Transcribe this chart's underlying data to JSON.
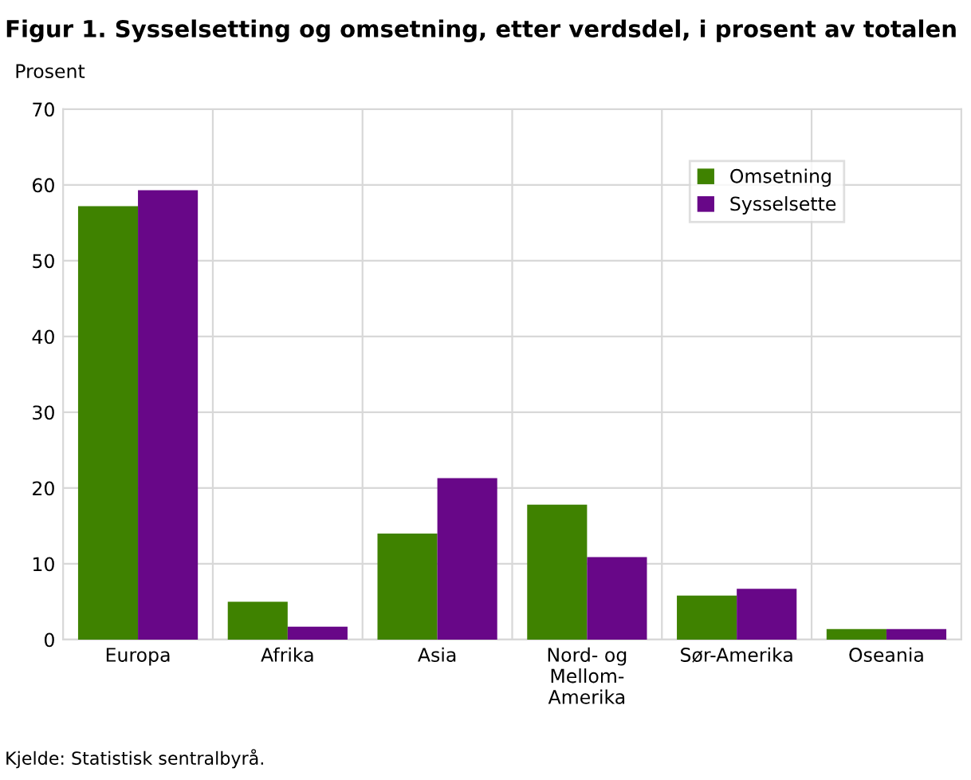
{
  "chart_data": {
    "type": "bar",
    "title": "Figur 1. Sysselsetting og omsetning, etter verdsdel, i prosent av totalen",
    "ylabel": "Prosent",
    "categories": [
      "Europa",
      "Afrika",
      "Asia",
      "Nord- og\nMellom-\nAmerika",
      "Sør-Amerika",
      "Oseania"
    ],
    "series": [
      {
        "name": "Omsetning",
        "color": "#3f8200",
        "values": [
          57.2,
          5.0,
          14.0,
          17.8,
          5.8,
          1.4
        ]
      },
      {
        "name": "Sysselsette",
        "color": "#680788",
        "values": [
          59.3,
          1.7,
          21.3,
          10.9,
          6.7,
          1.4
        ]
      }
    ],
    "ylim": [
      0,
      70
    ],
    "yticks": [
      0,
      10,
      20,
      30,
      40,
      50,
      60,
      70
    ],
    "grid": true,
    "legend": "top right",
    "annotations": [
      "Kjelde: Statistisk sentralbyrå."
    ]
  }
}
